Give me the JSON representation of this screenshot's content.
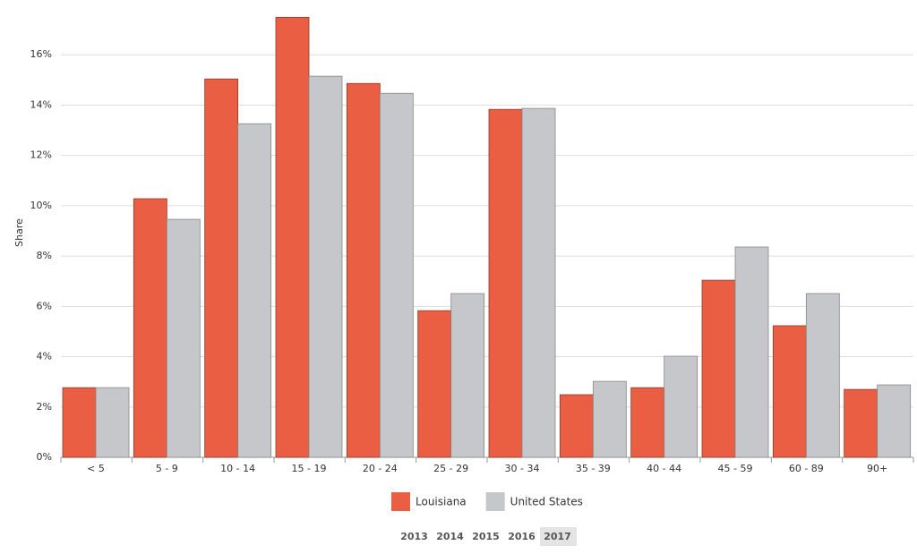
{
  "chart_data": {
    "type": "bar",
    "y_label": "Share",
    "categories": [
      "< 5",
      "5 - 9",
      "10 - 14",
      "15 - 19",
      "20 - 24",
      "25 - 29",
      "30 - 34",
      "35 - 39",
      "40 - 44",
      "45 - 59",
      "60 - 89",
      "90+"
    ],
    "series": [
      {
        "name": "Louisiana",
        "color": "#ea5f43",
        "values": [
          2.77,
          10.28,
          15.04,
          17.49,
          14.86,
          5.83,
          13.83,
          2.49,
          2.77,
          7.04,
          5.23,
          2.7
        ]
      },
      {
        "name": "United States",
        "color": "#c6c7cb",
        "values": [
          2.77,
          9.46,
          13.26,
          15.15,
          14.47,
          6.51,
          13.87,
          3.02,
          4.02,
          8.36,
          6.51,
          2.88
        ]
      }
    ],
    "ylim": [
      0,
      18
    ],
    "yticks": [
      {
        "value": 0,
        "label": "0%"
      },
      {
        "value": 2,
        "label": "2%"
      },
      {
        "value": 4,
        "label": "4%"
      },
      {
        "value": 6,
        "label": "6%"
      },
      {
        "value": 8,
        "label": "8%"
      },
      {
        "value": 10,
        "label": "10%"
      },
      {
        "value": 12,
        "label": "12%"
      },
      {
        "value": 14,
        "label": "14%"
      },
      {
        "value": 16,
        "label": "16%"
      }
    ],
    "grid": true
  },
  "controls": {
    "years": [
      "2013",
      "2014",
      "2015",
      "2016",
      "2017"
    ],
    "selected": "2017"
  }
}
